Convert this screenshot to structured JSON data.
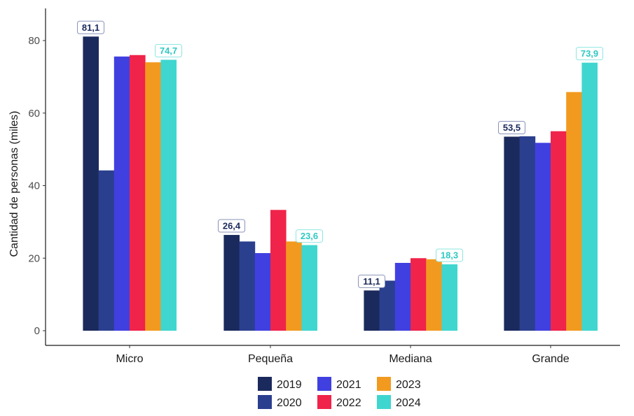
{
  "chart_data": {
    "type": "bar",
    "ylabel": "Cantidad de personas (miles)",
    "xlabel": "",
    "ylim": [
      0,
      85
    ],
    "y_ticks": [
      0,
      20,
      40,
      60,
      80
    ],
    "grid": false,
    "legend_position": "bottom",
    "categories": [
      "Micro",
      "Pequeña",
      "Mediana",
      "Grande"
    ],
    "series": [
      {
        "name": "2019",
        "color": "#1b2a5c",
        "values": [
          81.1,
          26.4,
          11.1,
          53.5
        ]
      },
      {
        "name": "2020",
        "color": "#2b3f8f",
        "values": [
          44.2,
          24.6,
          13.8,
          53.6
        ]
      },
      {
        "name": "2021",
        "color": "#4040e0",
        "values": [
          75.6,
          21.4,
          18.7,
          51.8
        ]
      },
      {
        "name": "2022",
        "color": "#f0234a",
        "values": [
          76.0,
          33.3,
          20.0,
          55.0
        ]
      },
      {
        "name": "2023",
        "color": "#f29a1f",
        "values": [
          74.0,
          24.6,
          19.7,
          65.8
        ]
      },
      {
        "name": "2024",
        "color": "#3fd6cf",
        "values": [
          74.7,
          23.6,
          18.3,
          73.9
        ]
      }
    ],
    "data_labels": [
      {
        "category": "Micro",
        "series": "2019",
        "text": "81,1"
      },
      {
        "category": "Micro",
        "series": "2024",
        "text": "74,7"
      },
      {
        "category": "Pequeña",
        "series": "2019",
        "text": "26,4"
      },
      {
        "category": "Pequeña",
        "series": "2024",
        "text": "23,6"
      },
      {
        "category": "Mediana",
        "series": "2019",
        "text": "11,1"
      },
      {
        "category": "Mediana",
        "series": "2024",
        "text": "18,3"
      },
      {
        "category": "Grande",
        "series": "2019",
        "text": "53,5"
      },
      {
        "category": "Grande",
        "series": "2024",
        "text": "73,9"
      }
    ]
  }
}
